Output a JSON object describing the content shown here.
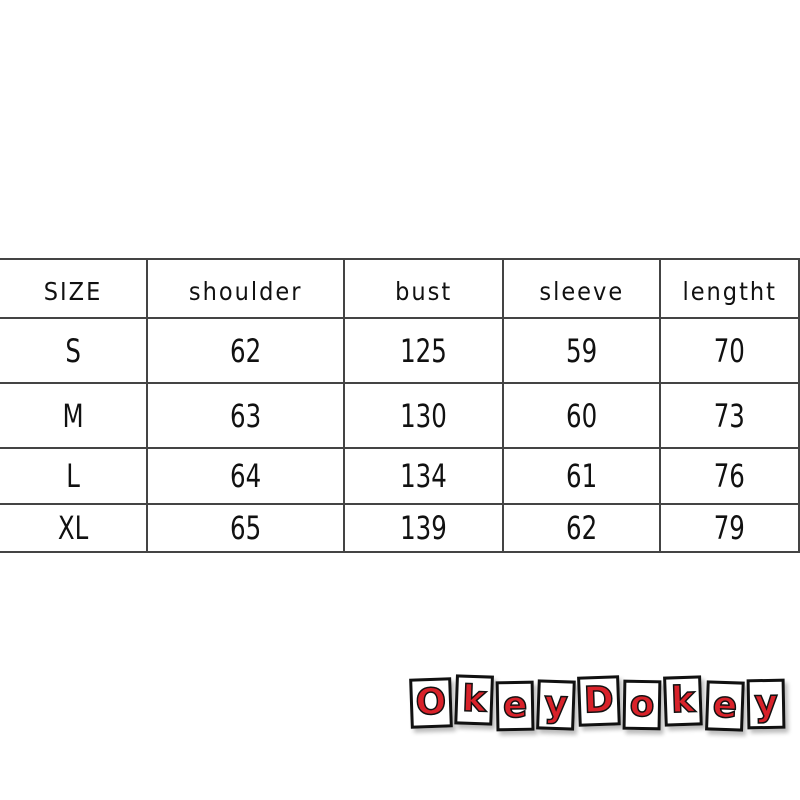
{
  "table": {
    "headers": [
      "SIZE",
      "shoulder",
      "bust",
      "sleeve",
      "lengtht"
    ],
    "rows": [
      [
        "S",
        "62",
        "125",
        "59",
        "70"
      ],
      [
        "M",
        "63",
        "130",
        "60",
        "73"
      ],
      [
        "L",
        "64",
        "134",
        "61",
        "76"
      ],
      [
        "XL",
        "65",
        "139",
        "62",
        "79"
      ]
    ]
  },
  "logo": {
    "text": "OkeyDokey",
    "letters": [
      "O",
      "k",
      "e",
      "y",
      "D",
      "o",
      "k",
      "e",
      "y"
    ],
    "letter_color": "#d8222a"
  }
}
